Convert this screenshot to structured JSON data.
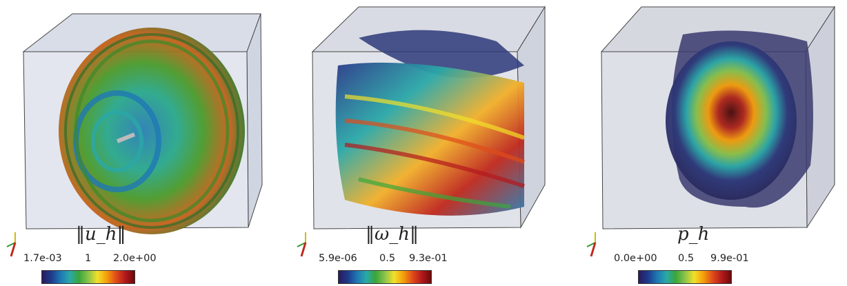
{
  "panels": [
    {
      "id": "velocity",
      "label": "‖u_h‖",
      "colorbar": {
        "min": "1.7e-03",
        "mid": "1",
        "max": "2.0e+00"
      },
      "colormap": [
        "#2a1a5e",
        "#1e3a8a",
        "#1f78b4",
        "#2aa8a8",
        "#3aa63a",
        "#8bc34a",
        "#f2e02a",
        "#f59e0b",
        "#e04c1a",
        "#b3181c",
        "#6b0a0a"
      ]
    },
    {
      "id": "vorticity",
      "label": "‖ω_h‖",
      "colorbar": {
        "min": "5.9e-06",
        "mid": "0.5",
        "max": "9.3e-01"
      },
      "colormap": [
        "#2a1a5e",
        "#1e3a8a",
        "#1f78b4",
        "#2aa8a8",
        "#3aa63a",
        "#8bc34a",
        "#f2e02a",
        "#f59e0b",
        "#e04c1a",
        "#b3181c",
        "#6b0a0a"
      ]
    },
    {
      "id": "pressure",
      "label": "p_h",
      "colorbar": {
        "min": "0.0e+00",
        "mid": "0.5",
        "max": "9.9e-01"
      },
      "colormap": [
        "#2a1a5e",
        "#1e3a8a",
        "#1f78b4",
        "#2aa8a8",
        "#3aa63a",
        "#8bc34a",
        "#f2e02a",
        "#f59e0b",
        "#e04c1a",
        "#b3181c",
        "#6b0a0a"
      ]
    }
  ]
}
